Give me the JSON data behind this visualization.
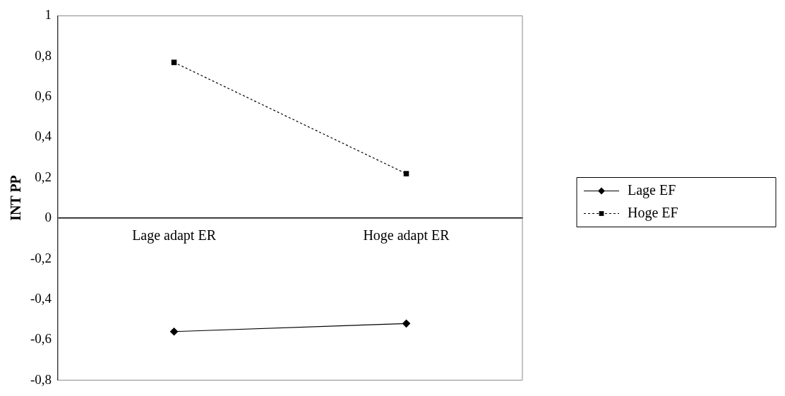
{
  "chart_data": {
    "type": "line",
    "ylabel": "INT PP",
    "categories": [
      "Lage adapt ER",
      "Hoge adapt ER"
    ],
    "series": [
      {
        "name": "Lage EF",
        "color": "#000000",
        "values": [
          -0.56,
          -0.52
        ],
        "marker": "diamond",
        "line_style": "solid"
      },
      {
        "name": "Hoge EF",
        "color": "#000000",
        "values": [
          0.77,
          0.22
        ],
        "marker": "square",
        "line_style": "dotted"
      }
    ],
    "ylim": [
      -0.8,
      1
    ],
    "yticks": [
      {
        "value": -0.8,
        "label": "-0,8"
      },
      {
        "value": -0.6,
        "label": "-0,6"
      },
      {
        "value": -0.4,
        "label": "-0,4"
      },
      {
        "value": -0.2,
        "label": "-0,2"
      },
      {
        "value": 0,
        "label": "0"
      },
      {
        "value": 0.2,
        "label": "0,2"
      },
      {
        "value": 0.4,
        "label": "0,4"
      },
      {
        "value": 0.6,
        "label": "0,6"
      },
      {
        "value": 0.8,
        "label": "0,8"
      },
      {
        "value": 1,
        "label": "1"
      }
    ],
    "grid": false,
    "legend": "right"
  }
}
